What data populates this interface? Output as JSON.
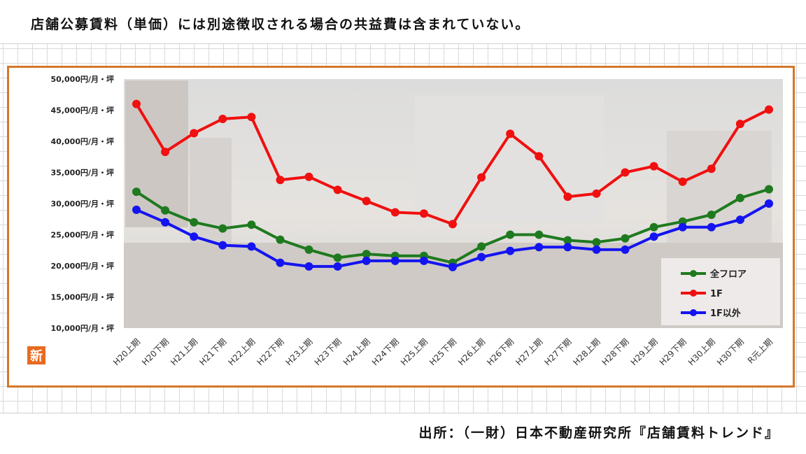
{
  "note": "店舗公募賃料（単価）には別途徴収される場合の共益費は含まれていない。",
  "source": "出所：（一財）日本不動産研究所『店舗賃料トレンド』",
  "badge": "新",
  "colors": {
    "frame": "#d4782a",
    "green": "#1f7a1f",
    "red": "#f01010",
    "blue": "#1414f0"
  },
  "chart_data": {
    "type": "line",
    "ylim": [
      10000,
      50000
    ],
    "yticks": [
      {
        "value": 10000,
        "label": "10,000円/月・坪"
      },
      {
        "value": 15000,
        "label": "15,000円/月・坪"
      },
      {
        "value": 20000,
        "label": "20,000円/月・坪"
      },
      {
        "value": 25000,
        "label": "25,000円/月・坪"
      },
      {
        "value": 30000,
        "label": "30,000円/月・坪"
      },
      {
        "value": 35000,
        "label": "35,000円/月・坪"
      },
      {
        "value": 40000,
        "label": "40,000円/月・坪"
      },
      {
        "value": 45000,
        "label": "45,000円/月・坪"
      },
      {
        "value": 50000,
        "label": "50,000円/月・坪"
      }
    ],
    "categories": [
      "H20上期",
      "H20下期",
      "H21上期",
      "H21下期",
      "H22上期",
      "H22下期",
      "H23上期",
      "H23下期",
      "H24上期",
      "H24下期",
      "H25上期",
      "H25下期",
      "H26上期",
      "H26下期",
      "H27上期",
      "H27下期",
      "H28上期",
      "H28下期",
      "H29上期",
      "H29下期",
      "H30上期",
      "H30下期",
      "R元上期"
    ],
    "legend_position": "bottom-right",
    "series": [
      {
        "name": "全フロア",
        "color": "#1f7a1f",
        "values": [
          31900,
          28900,
          27000,
          26000,
          26600,
          24200,
          22600,
          21300,
          21900,
          21600,
          21600,
          20500,
          23100,
          25000,
          25000,
          24100,
          23800,
          24400,
          26200,
          27100,
          28200,
          30900,
          32300
        ]
      },
      {
        "name": "1F",
        "color": "#f01010",
        "values": [
          46000,
          38300,
          41300,
          43600,
          43900,
          33800,
          34300,
          32200,
          30400,
          28600,
          28400,
          26700,
          34200,
          41200,
          37600,
          31100,
          31600,
          35000,
          36000,
          33500,
          35600,
          42800,
          45100
        ]
      },
      {
        "name": "1F以外",
        "color": "#1414f0",
        "values": [
          29000,
          27000,
          24700,
          23300,
          23100,
          20500,
          19900,
          19900,
          20800,
          20800,
          20800,
          19800,
          21400,
          22400,
          23000,
          23000,
          22600,
          22600,
          24700,
          26200,
          26200,
          27400,
          30000
        ]
      }
    ]
  }
}
